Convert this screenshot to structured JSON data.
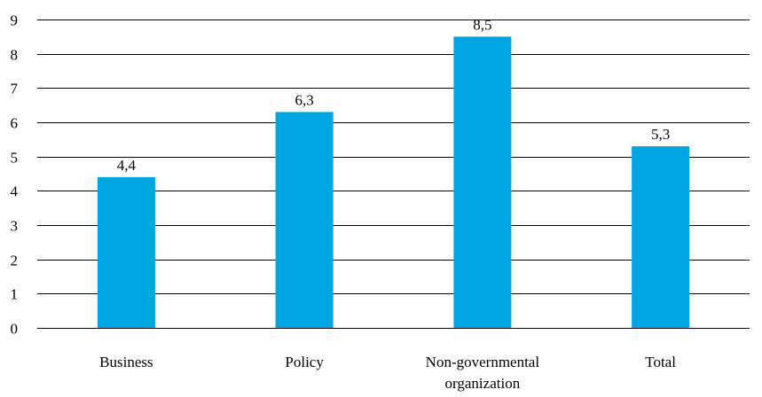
{
  "chart_data": {
    "type": "bar",
    "categories": [
      [
        "Business"
      ],
      [
        "Policy"
      ],
      [
        "Non-governmental",
        "organization"
      ],
      [
        "Total"
      ]
    ],
    "values": [
      4.4,
      6.3,
      8.5,
      5.3
    ],
    "value_labels": [
      "4,4",
      "6,3",
      "8,5",
      "5,3"
    ],
    "ylim": [
      0,
      9
    ],
    "yticks": [
      "0",
      "1",
      "2",
      "3",
      "4",
      "5",
      "6",
      "7",
      "8",
      "9"
    ],
    "grid": true,
    "bar_color": "#00a6e0",
    "title": "",
    "xlabel": "",
    "ylabel": ""
  }
}
